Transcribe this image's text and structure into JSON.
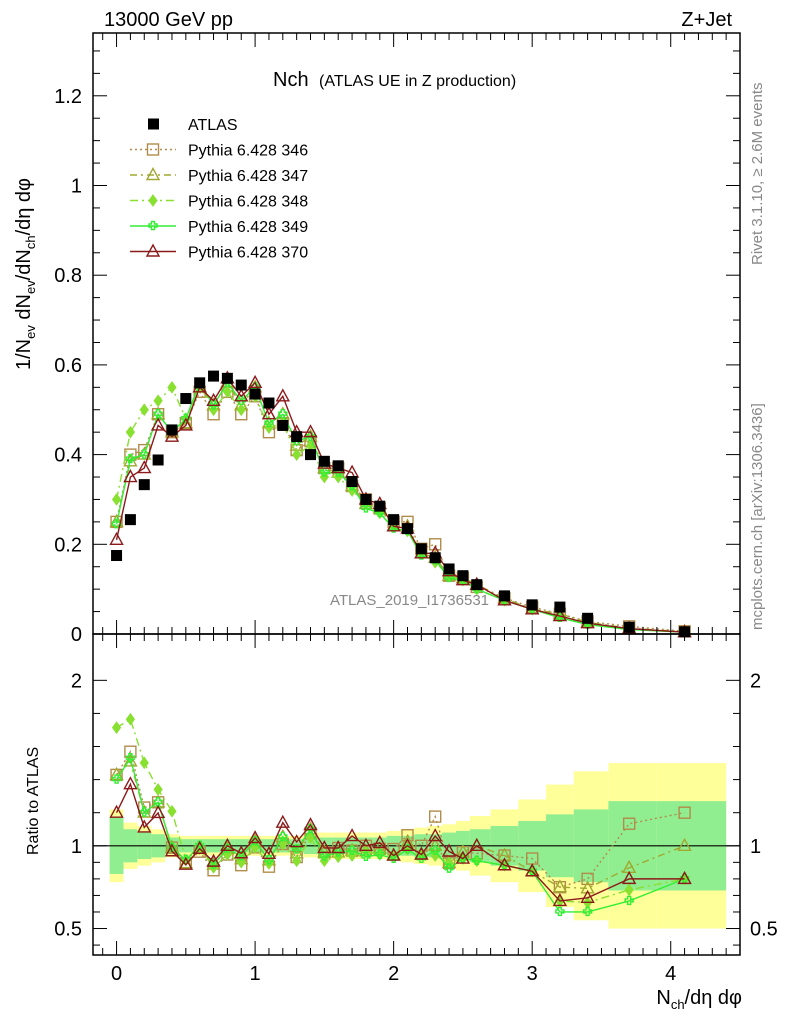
{
  "header": {
    "left": "13000 GeV pp",
    "right": "Z+Jet"
  },
  "side_labels": {
    "rivet": "Rivet 3.1.10, ≥ 2.6M events",
    "mcplots": "mcplots.cern.ch [arXiv:1306.3436]"
  },
  "chart_data": {
    "type": "line",
    "title_main": "Nch",
    "title_sub": "(ATLAS UE in Z production)",
    "watermark": "ATLAS_2019_I1736531",
    "xlabel": "N_ch/dη dφ",
    "ylabel": "1/N_ev dN_ev/dN_ch/dη dφ",
    "ratio_ylabel": "Ratio to ATLAS",
    "xlim": [
      -0.17,
      4.5
    ],
    "ylim": [
      0,
      1.34
    ],
    "ratio_ylim": [
      0.34,
      2.28
    ],
    "xticks": [
      "0",
      "1",
      "2",
      "3",
      "4"
    ],
    "yticks": [
      "0",
      "0.2",
      "0.4",
      "0.6",
      "0.8",
      "1",
      "1.2"
    ],
    "ratio_yticks": [
      "0.5",
      "1",
      "2"
    ],
    "x": [
      0.0,
      0.1,
      0.2,
      0.3,
      0.4,
      0.5,
      0.6,
      0.7,
      0.8,
      0.9,
      1.0,
      1.1,
      1.2,
      1.3,
      1.4,
      1.5,
      1.6,
      1.7,
      1.8,
      1.9,
      2.0,
      2.1,
      2.2,
      2.3,
      2.4,
      2.5,
      2.6,
      2.8,
      3.0,
      3.2,
      3.4,
      3.7,
      4.1
    ],
    "data": {
      "name": "ATLAS",
      "values": [
        0.175,
        0.255,
        0.333,
        0.388,
        0.455,
        0.525,
        0.56,
        0.575,
        0.57,
        0.555,
        0.535,
        0.515,
        0.465,
        0.44,
        0.4,
        0.385,
        0.375,
        0.34,
        0.3,
        0.285,
        0.255,
        0.235,
        0.19,
        0.17,
        0.145,
        0.13,
        0.11,
        0.085,
        0.065,
        0.06,
        0.035,
        0.015,
        0.005
      ]
    },
    "series": [
      {
        "name": "Pythia 6.428 346",
        "color": "#b28c4a",
        "dash": "2,3",
        "marker": "square",
        "values": [
          0.25,
          0.4,
          0.41,
          0.49,
          0.45,
          0.47,
          0.54,
          0.49,
          0.54,
          0.49,
          0.53,
          0.45,
          0.47,
          0.41,
          0.43,
          0.37,
          0.37,
          0.33,
          0.3,
          0.28,
          0.25,
          0.25,
          0.19,
          0.2,
          0.13,
          0.125,
          0.105,
          0.08,
          0.06,
          0.045,
          0.028,
          0.017,
          0.006
        ]
      },
      {
        "name": "Pythia 6.428 347",
        "color": "#a0a830",
        "dash": "7,4,2,4",
        "marker": "triangle",
        "values": [
          0.25,
          0.385,
          0.4,
          0.49,
          0.45,
          0.47,
          0.55,
          0.51,
          0.56,
          0.51,
          0.55,
          0.47,
          0.49,
          0.42,
          0.44,
          0.37,
          0.36,
          0.33,
          0.29,
          0.28,
          0.24,
          0.24,
          0.18,
          0.17,
          0.13,
          0.125,
          0.11,
          0.08,
          0.055,
          0.045,
          0.026,
          0.013,
          0.005
        ]
      },
      {
        "name": "Pythia 6.428 348",
        "color": "#88e030",
        "dash": "8,4,2,4",
        "marker": "diamond",
        "values": [
          0.3,
          0.45,
          0.5,
          0.52,
          0.55,
          0.48,
          0.55,
          0.5,
          0.54,
          0.5,
          0.53,
          0.46,
          0.47,
          0.4,
          0.42,
          0.35,
          0.35,
          0.32,
          0.29,
          0.27,
          0.24,
          0.23,
          0.18,
          0.16,
          0.13,
          0.12,
          0.1,
          0.075,
          0.055,
          0.04,
          0.023,
          0.011,
          0.004
        ]
      },
      {
        "name": "Pythia 6.428 349",
        "color": "#33ee33",
        "dash": "",
        "marker": "cross",
        "values": [
          0.245,
          0.39,
          0.4,
          0.49,
          0.45,
          0.48,
          0.56,
          0.51,
          0.56,
          0.52,
          0.55,
          0.47,
          0.49,
          0.43,
          0.44,
          0.36,
          0.36,
          0.33,
          0.28,
          0.27,
          0.235,
          0.23,
          0.175,
          0.165,
          0.125,
          0.12,
          0.1,
          0.075,
          0.055,
          0.036,
          0.021,
          0.01,
          0.004
        ]
      },
      {
        "name": "Pythia 6.428 370",
        "color": "#8b1a1a",
        "dash": "",
        "marker": "triangle",
        "values": [
          0.21,
          0.35,
          0.37,
          0.465,
          0.44,
          0.465,
          0.55,
          0.52,
          0.57,
          0.53,
          0.56,
          0.49,
          0.53,
          0.45,
          0.45,
          0.38,
          0.37,
          0.36,
          0.3,
          0.29,
          0.24,
          0.235,
          0.18,
          0.18,
          0.14,
          0.12,
          0.11,
          0.075,
          0.055,
          0.04,
          0.024,
          0.012,
          0.004
        ]
      }
    ],
    "ratio_bands": {
      "inner_color": "#90ee90",
      "outer_color": "#ffff99",
      "inner": [
        0.17,
        0.1,
        0.08,
        0.07,
        0.05,
        0.04,
        0.04,
        0.04,
        0.04,
        0.04,
        0.04,
        0.04,
        0.04,
        0.04,
        0.05,
        0.05,
        0.05,
        0.05,
        0.05,
        0.05,
        0.06,
        0.06,
        0.07,
        0.07,
        0.08,
        0.09,
        0.1,
        0.12,
        0.15,
        0.19,
        0.22,
        0.27,
        0.27
      ],
      "outer": [
        0.22,
        0.14,
        0.12,
        0.1,
        0.07,
        0.06,
        0.06,
        0.06,
        0.06,
        0.06,
        0.06,
        0.06,
        0.06,
        0.06,
        0.07,
        0.08,
        0.08,
        0.08,
        0.08,
        0.08,
        0.09,
        0.1,
        0.11,
        0.12,
        0.13,
        0.15,
        0.18,
        0.22,
        0.28,
        0.37,
        0.45,
        0.5,
        0.5
      ]
    },
    "grid": false,
    "legend_position": "top-left"
  }
}
